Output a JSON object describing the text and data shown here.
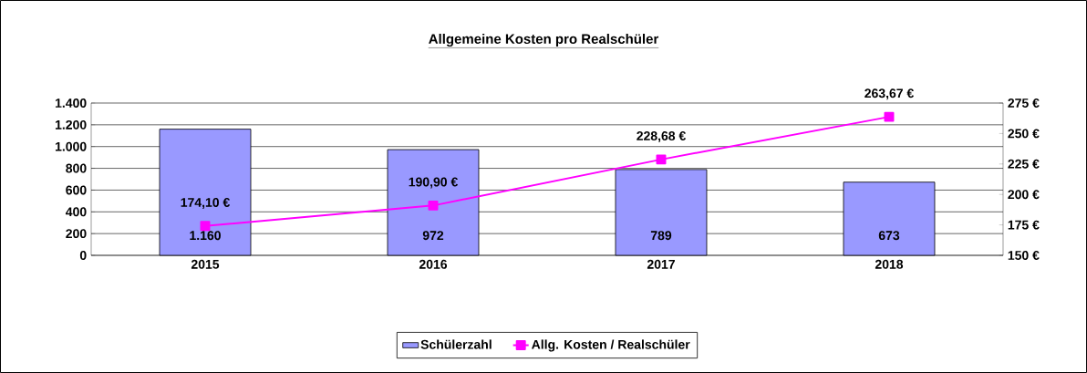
{
  "chart_data": {
    "type": "bar",
    "title": "Allgemeine Kosten pro Realschüler",
    "categories": [
      "2015",
      "2016",
      "2017",
      "2018"
    ],
    "series": [
      {
        "name": "Schülerzahl",
        "color": "#9999ff",
        "values": [
          1160,
          972,
          789,
          673
        ],
        "value_labels": [
          "1.160",
          "972",
          "789",
          "673"
        ]
      },
      {
        "name": "Allg. Kosten / Realschüler",
        "type": "line",
        "axis": "y2",
        "color": "#ff00ff",
        "values": [
          174.1,
          190.9,
          228.68,
          263.67
        ],
        "value_labels": [
          "174,10 €",
          "190,90 €",
          "228,68 €",
          "263,67 €"
        ]
      }
    ],
    "ylim": [
      0,
      1400
    ],
    "yticks": [
      0,
      200,
      400,
      600,
      800,
      {
        "value": 1000,
        "label": "1.000"
      },
      {
        "value": 1200,
        "label": "1.200"
      },
      {
        "value": 1400,
        "label": "1.400"
      }
    ],
    "y2lim": [
      150,
      275
    ],
    "y2ticks": [
      {
        "value": 150,
        "label": "150 €"
      },
      {
        "value": 175,
        "label": "175 €"
      },
      {
        "value": 200,
        "label": "200 €"
      },
      {
        "value": 225,
        "label": "225 €"
      },
      {
        "value": 250,
        "label": "250 €"
      },
      {
        "value": 275,
        "label": "275 €"
      }
    ],
    "grid": "y",
    "legend": "bottom",
    "marker": "square",
    "line_style": "solid"
  }
}
